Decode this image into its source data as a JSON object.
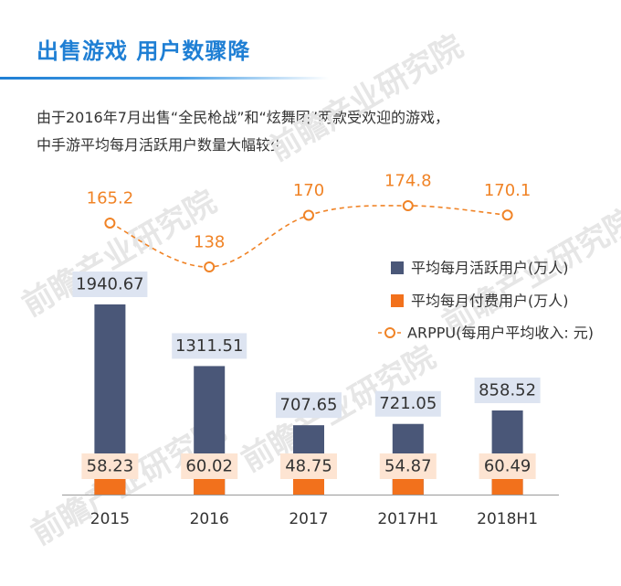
{
  "title": "出售游戏 用户数骤降",
  "subtitle_lines": [
    "由于2016年7月出售“全民枪战”和“炫舞团”两款受欢迎的游戏，",
    "中手游平均每月活跃用户数量大幅较少"
  ],
  "watermark": "前瞻产业研究院",
  "colors": {
    "mau": "#4a5778",
    "paying": "#f2711c",
    "arppu": "#f08326",
    "mau_label_bg": "#dde4f1",
    "paying_label_bg": "#fde4d2",
    "axis": "#999999",
    "text": "#333333"
  },
  "chart_data": {
    "type": "bar",
    "categories": [
      "2015",
      "2016",
      "2017",
      "2017H1",
      "2018H1"
    ],
    "series": [
      {
        "name": "平均每月活跃用户(万人)",
        "type": "bar",
        "values": [
          1940.67,
          1311.51,
          707.65,
          721.05,
          858.52
        ]
      },
      {
        "name": "平均每月付费用户(万人)",
        "type": "bar",
        "values": [
          58.23,
          60.02,
          48.75,
          54.87,
          60.49
        ]
      },
      {
        "name": "ARPPU(每用户平均收入: 元)",
        "type": "line",
        "values": [
          165.2,
          138,
          170,
          174.8,
          170.1
        ]
      }
    ],
    "value_labels": {
      "mau": [
        "1940.67",
        "1311.51",
        "707.65",
        "721.05",
        "858.52"
      ],
      "paying": [
        "58.23",
        "60.02",
        "48.75",
        "54.87",
        "60.49"
      ],
      "arppu": [
        "165.2",
        "138",
        "170",
        "174.8",
        "170.1"
      ]
    },
    "ylim": [
      0,
      2200
    ],
    "arppu_lim": [
      100,
      175
    ],
    "legend_position": "right",
    "grid": false
  }
}
